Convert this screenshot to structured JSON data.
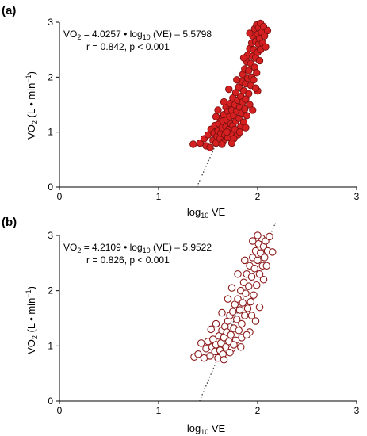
{
  "chart_data": [
    {
      "type": "scatter",
      "panel_label": "(a)",
      "xlabel_base": "log",
      "xlabel_sub": "10",
      "xlabel_tail": " VE",
      "ylabel_main": "VO",
      "ylabel_sub": "2",
      "ylabel_units": " (L • min",
      "ylabel_sup": "−1",
      "ylabel_close": ")",
      "xlim": [
        0,
        3
      ],
      "ylim": [
        0,
        3
      ],
      "xticks": [
        "0",
        "1",
        "2",
        "3"
      ],
      "yticks": [
        "0",
        "1",
        "2",
        "3"
      ],
      "equation": {
        "lhs": "VO",
        "lhs_sub": "2",
        "mid": " = 4.0257 • log",
        "mid_sub": "10",
        "rhs": " (VE) – 5.5798"
      },
      "stats": "r = 0.842, p < 0.001",
      "regression": {
        "slope": 4.0257,
        "intercept": -5.5798,
        "x_from": 1.386,
        "x_to": 2.12
      },
      "marker": {
        "fill": "#d42020",
        "stroke": "#7a1010",
        "style": "filled"
      },
      "points": [
        [
          1.35,
          0.78
        ],
        [
          1.42,
          0.8
        ],
        [
          1.46,
          0.88
        ],
        [
          1.48,
          0.75
        ],
        [
          1.5,
          0.95
        ],
        [
          1.52,
          0.72
        ],
        [
          1.53,
          1.05
        ],
        [
          1.55,
          0.85
        ],
        [
          1.56,
          0.98
        ],
        [
          1.57,
          1.12
        ],
        [
          1.58,
          0.8
        ],
        [
          1.59,
          0.92
        ],
        [
          1.6,
          1.02
        ],
        [
          1.61,
          1.15
        ],
        [
          1.62,
          0.88
        ],
        [
          1.62,
          1.25
        ],
        [
          1.63,
          0.98
        ],
        [
          1.64,
          1.08
        ],
        [
          1.65,
          1.2
        ],
        [
          1.65,
          0.82
        ],
        [
          1.66,
          1.32
        ],
        [
          1.67,
          0.95
        ],
        [
          1.68,
          1.1
        ],
        [
          1.68,
          1.45
        ],
        [
          1.69,
          1.22
        ],
        [
          1.7,
          0.9
        ],
        [
          1.7,
          1.38
        ],
        [
          1.71,
          1.05
        ],
        [
          1.72,
          1.28
        ],
        [
          1.72,
          1.52
        ],
        [
          1.73,
          1.15
        ],
        [
          1.73,
          0.98
        ],
        [
          1.74,
          1.4
        ],
        [
          1.75,
          1.62
        ],
        [
          1.75,
          1.12
        ],
        [
          1.76,
          1.3
        ],
        [
          1.77,
          1.05
        ],
        [
          1.77,
          1.5
        ],
        [
          1.78,
          1.72
        ],
        [
          1.78,
          1.2
        ],
        [
          1.79,
          1.38
        ],
        [
          1.8,
          1.58
        ],
        [
          1.8,
          0.95
        ],
        [
          1.81,
          1.82
        ],
        [
          1.81,
          1.25
        ],
        [
          1.82,
          1.45
        ],
        [
          1.83,
          1.65
        ],
        [
          1.83,
          1.1
        ],
        [
          1.84,
          1.92
        ],
        [
          1.84,
          1.35
        ],
        [
          1.85,
          1.55
        ],
        [
          1.85,
          2.05
        ],
        [
          1.86,
          1.75
        ],
        [
          1.86,
          1.18
        ],
        [
          1.87,
          1.42
        ],
        [
          1.87,
          2.15
        ],
        [
          1.88,
          1.88
        ],
        [
          1.88,
          1.6
        ],
        [
          1.89,
          2.28
        ],
        [
          1.89,
          1.3
        ],
        [
          1.9,
          1.98
        ],
        [
          1.9,
          2.4
        ],
        [
          1.91,
          1.7
        ],
        [
          1.91,
          2.12
        ],
        [
          1.92,
          1.5
        ],
        [
          1.92,
          2.52
        ],
        [
          1.93,
          2.25
        ],
        [
          1.93,
          1.85
        ],
        [
          1.94,
          2.62
        ],
        [
          1.94,
          2.0
        ],
        [
          1.95,
          2.38
        ],
        [
          1.95,
          2.75
        ],
        [
          1.96,
          1.95
        ],
        [
          1.96,
          2.5
        ],
        [
          1.97,
          2.88
        ],
        [
          1.97,
          2.18
        ],
        [
          1.98,
          2.65
        ],
        [
          1.98,
          2.35
        ],
        [
          1.99,
          2.95
        ],
        [
          1.99,
          2.08
        ],
        [
          2.0,
          2.78
        ],
        [
          2.0,
          2.45
        ],
        [
          2.01,
          2.6
        ],
        [
          2.01,
          2.9
        ],
        [
          2.02,
          2.3
        ],
        [
          2.02,
          2.7
        ],
        [
          2.03,
          2.98
        ],
        [
          2.03,
          2.5
        ],
        [
          2.04,
          2.82
        ],
        [
          2.05,
          2.62
        ],
        [
          2.06,
          2.92
        ],
        [
          2.07,
          2.75
        ],
        [
          2.08,
          2.55
        ],
        [
          2.1,
          2.85
        ],
        [
          1.76,
          0.88
        ],
        [
          1.69,
          1.0
        ],
        [
          1.64,
          0.78
        ],
        [
          1.58,
          1.28
        ],
        [
          1.74,
          0.8
        ],
        [
          1.82,
          1.0
        ],
        [
          1.88,
          1.08
        ],
        [
          1.95,
          1.4
        ],
        [
          2.0,
          1.75
        ],
        [
          1.79,
          1.95
        ],
        [
          1.71,
          1.78
        ],
        [
          1.66,
          1.55
        ],
        [
          1.6,
          1.4
        ],
        [
          1.86,
          2.35
        ],
        [
          1.92,
          2.8
        ],
        [
          1.98,
          1.8
        ]
      ]
    },
    {
      "type": "scatter",
      "panel_label": "(b)",
      "xlabel_base": "log",
      "xlabel_sub": "10",
      "xlabel_tail": " VE",
      "ylabel_main": "VO",
      "ylabel_sub": "2",
      "ylabel_units": " (L • min",
      "ylabel_sup": "−1",
      "ylabel_close": ")",
      "xlim": [
        0,
        3
      ],
      "ylim": [
        0,
        3
      ],
      "xticks": [
        "0",
        "1",
        "2",
        "3"
      ],
      "yticks": [
        "0",
        "1",
        "2",
        "3"
      ],
      "equation": {
        "lhs": "VO",
        "lhs_sub": "2",
        "mid": " = 4.2109 • log",
        "mid_sub": "10",
        "rhs": " (VE) – 5.9522"
      },
      "stats": "r = 0.826, p < 0.001",
      "regression": {
        "slope": 4.2109,
        "intercept": -5.9522,
        "x_from": 1.414,
        "x_to": 2.18
      },
      "marker": {
        "fill": "#ffffff",
        "stroke": "#8b1a1a",
        "style": "open"
      },
      "points": [
        [
          1.36,
          0.8
        ],
        [
          1.4,
          0.85
        ],
        [
          1.43,
          1.05
        ],
        [
          1.46,
          0.78
        ],
        [
          1.48,
          0.95
        ],
        [
          1.5,
          1.08
        ],
        [
          1.52,
          0.82
        ],
        [
          1.54,
          0.98
        ],
        [
          1.55,
          1.12
        ],
        [
          1.57,
          0.9
        ],
        [
          1.58,
          1.02
        ],
        [
          1.6,
          0.78
        ],
        [
          1.61,
          1.18
        ],
        [
          1.62,
          0.92
        ],
        [
          1.63,
          1.05
        ],
        [
          1.64,
          1.28
        ],
        [
          1.65,
          0.85
        ],
        [
          1.66,
          1.15
        ],
        [
          1.67,
          1.35
        ],
        [
          1.68,
          0.98
        ],
        [
          1.69,
          1.25
        ],
        [
          1.7,
          1.45
        ],
        [
          1.71,
          1.08
        ],
        [
          1.72,
          1.55
        ],
        [
          1.73,
          1.2
        ],
        [
          1.74,
          0.95
        ],
        [
          1.75,
          1.62
        ],
        [
          1.76,
          1.32
        ],
        [
          1.77,
          1.75
        ],
        [
          1.78,
          1.1
        ],
        [
          1.79,
          1.48
        ],
        [
          1.8,
          1.85
        ],
        [
          1.81,
          1.28
        ],
        [
          1.82,
          1.65
        ],
        [
          1.83,
          2.0
        ],
        [
          1.84,
          1.4
        ],
        [
          1.85,
          1.78
        ],
        [
          1.86,
          2.15
        ],
        [
          1.87,
          1.55
        ],
        [
          1.88,
          1.95
        ],
        [
          1.89,
          2.3
        ],
        [
          1.9,
          1.68
        ],
        [
          1.91,
          2.08
        ],
        [
          1.92,
          2.45
        ],
        [
          1.93,
          1.8
        ],
        [
          1.94,
          2.25
        ],
        [
          1.95,
          2.6
        ],
        [
          1.96,
          1.92
        ],
        [
          1.97,
          2.4
        ],
        [
          1.98,
          2.72
        ],
        [
          1.99,
          2.1
        ],
        [
          2.0,
          2.55
        ],
        [
          2.01,
          2.85
        ],
        [
          2.02,
          2.3
        ],
        [
          2.03,
          2.68
        ],
        [
          2.04,
          2.95
        ],
        [
          2.05,
          2.45
        ],
        [
          2.06,
          2.8
        ],
        [
          2.07,
          2.6
        ],
        [
          2.08,
          2.9
        ],
        [
          2.1,
          2.72
        ],
        [
          2.12,
          2.98
        ],
        [
          2.15,
          2.7
        ],
        [
          1.72,
          0.88
        ],
        [
          1.66,
          0.75
        ],
        [
          1.76,
          1.02
        ],
        [
          1.84,
          1.15
        ],
        [
          1.92,
          1.25
        ],
        [
          1.98,
          1.45
        ],
        [
          2.02,
          1.7
        ],
        [
          1.87,
          2.55
        ],
        [
          1.8,
          2.3
        ],
        [
          1.74,
          2.05
        ],
        [
          1.95,
          2.9
        ],
        [
          2.0,
          3.0
        ],
        [
          1.89,
          1.2
        ],
        [
          1.94,
          1.55
        ],
        [
          1.7,
          1.85
        ],
        [
          1.64,
          1.6
        ],
        [
          1.58,
          1.4
        ],
        [
          1.53,
          1.3
        ],
        [
          1.83,
          0.98
        ],
        [
          2.06,
          2.2
        ],
        [
          2.09,
          2.45
        ]
      ]
    }
  ]
}
